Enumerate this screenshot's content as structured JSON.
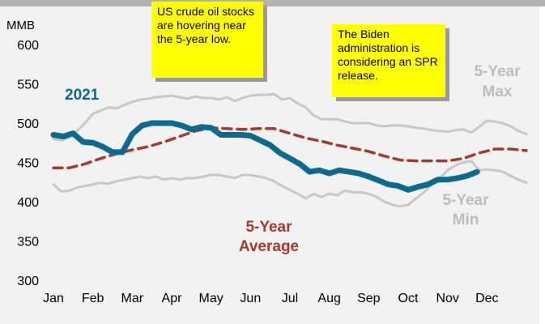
{
  "annotations": {
    "note_1": "US crude oil stocks are hovering near the 5-year low.",
    "note_2": "The Biden administration is considering an SPR release."
  },
  "chart_data": {
    "type": "line",
    "title": "",
    "xlabel": "",
    "ylabel": "MMB",
    "ylim": [
      300,
      600
    ],
    "y_ticks": [
      300,
      350,
      400,
      450,
      500,
      550,
      600
    ],
    "x_categories": [
      "Jan",
      "Feb",
      "Mar",
      "Apr",
      "May",
      "Jun",
      "Jul",
      "Aug",
      "Sep",
      "Oct",
      "Nov",
      "Dec"
    ],
    "grid": false,
    "colors": {
      "y2021": "#0b6a8e",
      "average": "#a63a2b",
      "max": "#c8c8c8",
      "min": "#c8c8c8",
      "background": "#f2f2f2",
      "note": "#ffff00"
    },
    "series_labels": {
      "y2021": "2021",
      "average_line1": "5-Year",
      "average_line2": "Average",
      "max_line1": "5-Year",
      "max_line2": "Max",
      "min_line1": "5-Year",
      "min_line2": "Min"
    },
    "series": [
      {
        "id": "max",
        "x": [
          0,
          0.2,
          0.4,
          0.6,
          0.8,
          1.0,
          1.2,
          1.4,
          1.6,
          1.8,
          2.0,
          2.2,
          2.4,
          2.6,
          2.8,
          3.0,
          3.2,
          3.4,
          3.6,
          3.8,
          4.0,
          4.2,
          4.4,
          4.6,
          4.8,
          5.0,
          5.2,
          5.4,
          5.6,
          5.8,
          6.0,
          6.2,
          6.4,
          6.6,
          6.8,
          7.0,
          7.2,
          7.4,
          7.6,
          7.8,
          8.0,
          8.2,
          8.4,
          8.6,
          8.8,
          9.0,
          9.2,
          9.4,
          9.6,
          9.8,
          10.0,
          10.2,
          10.4,
          10.6,
          10.8,
          11.0,
          11.2,
          11.4,
          11.6,
          11.8,
          12.0
        ],
        "values": [
          480,
          478,
          482,
          490,
          500,
          512,
          516,
          520,
          519,
          523,
          527,
          530,
          531,
          533,
          534,
          535,
          533,
          531,
          534,
          532,
          532,
          530,
          533,
          528,
          532,
          535,
          536,
          536,
          537,
          530,
          532,
          525,
          520,
          510,
          505,
          505,
          505,
          502,
          500,
          500,
          500,
          497,
          496,
          497,
          497,
          496,
          494,
          493,
          491,
          490,
          489,
          491,
          492,
          488,
          495,
          503,
          502,
          500,
          496,
          490,
          486
        ]
      },
      {
        "id": "min",
        "x": [
          0,
          0.2,
          0.4,
          0.6,
          0.8,
          1.0,
          1.2,
          1.4,
          1.6,
          1.8,
          2.0,
          2.2,
          2.4,
          2.6,
          2.8,
          3.0,
          3.2,
          3.4,
          3.6,
          3.8,
          4.0,
          4.2,
          4.4,
          4.6,
          4.8,
          5.0,
          5.2,
          5.4,
          5.6,
          5.8,
          6.0,
          6.2,
          6.4,
          6.6,
          6.8,
          7.0,
          7.2,
          7.4,
          7.6,
          7.8,
          8.0,
          8.2,
          8.4,
          8.6,
          8.8,
          9.0,
          9.2,
          9.4,
          9.6,
          9.8,
          10.0,
          10.2,
          10.4,
          10.6,
          10.8,
          11.0,
          11.2,
          11.4,
          11.6,
          11.8,
          12.0
        ],
        "values": [
          422,
          413,
          414,
          418,
          420,
          422,
          424,
          423,
          426,
          428,
          430,
          432,
          430,
          432,
          428,
          430,
          428,
          430,
          430,
          432,
          434,
          434,
          432,
          430,
          434,
          434,
          432,
          430,
          426,
          420,
          415,
          410,
          404,
          410,
          406,
          410,
          408,
          414,
          412,
          412,
          410,
          406,
          400,
          396,
          394,
          396,
          404,
          412,
          422,
          430,
          440,
          446,
          450,
          452,
          440,
          441,
          440,
          438,
          433,
          428,
          424
        ]
      },
      {
        "id": "average",
        "x": [
          0,
          0.4,
          0.8,
          1.2,
          1.6,
          2.0,
          2.4,
          2.8,
          3.2,
          3.6,
          4.0,
          4.4,
          4.8,
          5.2,
          5.6,
          6.0,
          6.4,
          6.8,
          7.2,
          7.6,
          8.0,
          8.4,
          8.8,
          9.2,
          9.6,
          10.0,
          10.4,
          10.8,
          11.2,
          11.6,
          12.0
        ],
        "values": [
          443,
          443,
          448,
          455,
          461,
          466,
          470,
          476,
          483,
          490,
          494,
          493,
          492,
          493,
          493,
          487,
          481,
          477,
          472,
          468,
          464,
          458,
          453,
          452,
          452,
          452,
          455,
          462,
          467,
          467,
          465
        ]
      },
      {
        "id": "y2021",
        "x": [
          0,
          0.25,
          0.5,
          0.75,
          1.0,
          1.25,
          1.5,
          1.75,
          2.0,
          2.25,
          2.5,
          2.75,
          3.0,
          3.25,
          3.5,
          3.75,
          4.0,
          4.25,
          4.5,
          4.75,
          5.0,
          5.25,
          5.5,
          5.75,
          6.0,
          6.25,
          6.5,
          6.75,
          7.0,
          7.25,
          7.5,
          7.75,
          8.0,
          8.25,
          8.5,
          8.75,
          9.0,
          9.25,
          9.5,
          9.75,
          10.0,
          10.25,
          10.5,
          10.75
        ],
        "values": [
          485,
          483,
          487,
          476,
          475,
          470,
          463,
          463,
          486,
          497,
          500,
          500,
          500,
          497,
          492,
          495,
          494,
          485,
          485,
          485,
          484,
          478,
          472,
          462,
          455,
          448,
          438,
          440,
          436,
          440,
          438,
          436,
          432,
          427,
          422,
          420,
          415,
          419,
          422,
          428,
          428,
          430,
          433,
          438
        ]
      }
    ]
  }
}
